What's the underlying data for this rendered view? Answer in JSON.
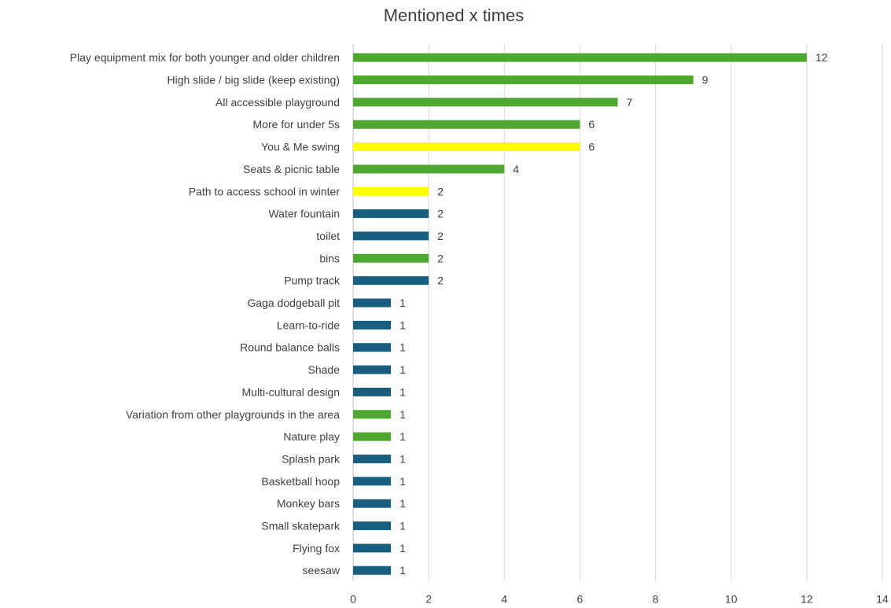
{
  "chart_data": {
    "type": "bar",
    "orientation": "horizontal",
    "title": "Mentioned x times",
    "xlabel": "",
    "ylabel": "",
    "xlim": [
      0,
      14
    ],
    "xticks": [
      0,
      2,
      4,
      6,
      8,
      10,
      12,
      14
    ],
    "grid": true,
    "legend": "none",
    "colors": {
      "green": "#4ea72e",
      "yellow": "#ffff00",
      "blue": "#195e7e"
    },
    "bars": [
      {
        "category": "Play equipment mix for both younger and older children",
        "value": 12,
        "color": "green"
      },
      {
        "category": "High slide / big slide (keep existing)",
        "value": 9,
        "color": "green"
      },
      {
        "category": "All accessible playground",
        "value": 7,
        "color": "green"
      },
      {
        "category": "More for under 5s",
        "value": 6,
        "color": "green"
      },
      {
        "category": "You & Me swing",
        "value": 6,
        "color": "yellow"
      },
      {
        "category": "Seats & picnic table",
        "value": 4,
        "color": "green"
      },
      {
        "category": "Path to access school in winter",
        "value": 2,
        "color": "yellow"
      },
      {
        "category": "Water fountain",
        "value": 2,
        "color": "blue"
      },
      {
        "category": "toilet",
        "value": 2,
        "color": "blue"
      },
      {
        "category": "bins",
        "value": 2,
        "color": "green"
      },
      {
        "category": "Pump track",
        "value": 2,
        "color": "blue"
      },
      {
        "category": "Gaga dodgeball pit",
        "value": 1,
        "color": "blue"
      },
      {
        "category": "Learn-to-ride",
        "value": 1,
        "color": "blue"
      },
      {
        "category": "Round balance balls",
        "value": 1,
        "color": "blue"
      },
      {
        "category": "Shade",
        "value": 1,
        "color": "blue"
      },
      {
        "category": "Multi-cultural design",
        "value": 1,
        "color": "blue"
      },
      {
        "category": "Variation from other playgrounds in the area",
        "value": 1,
        "color": "green"
      },
      {
        "category": "Nature play",
        "value": 1,
        "color": "green"
      },
      {
        "category": "Splash park",
        "value": 1,
        "color": "blue"
      },
      {
        "category": "Basketball hoop",
        "value": 1,
        "color": "blue"
      },
      {
        "category": "Monkey bars",
        "value": 1,
        "color": "blue"
      },
      {
        "category": "Small skatepark",
        "value": 1,
        "color": "blue"
      },
      {
        "category": "Flying fox",
        "value": 1,
        "color": "blue"
      },
      {
        "category": "seesaw",
        "value": 1,
        "color": "blue"
      }
    ]
  }
}
